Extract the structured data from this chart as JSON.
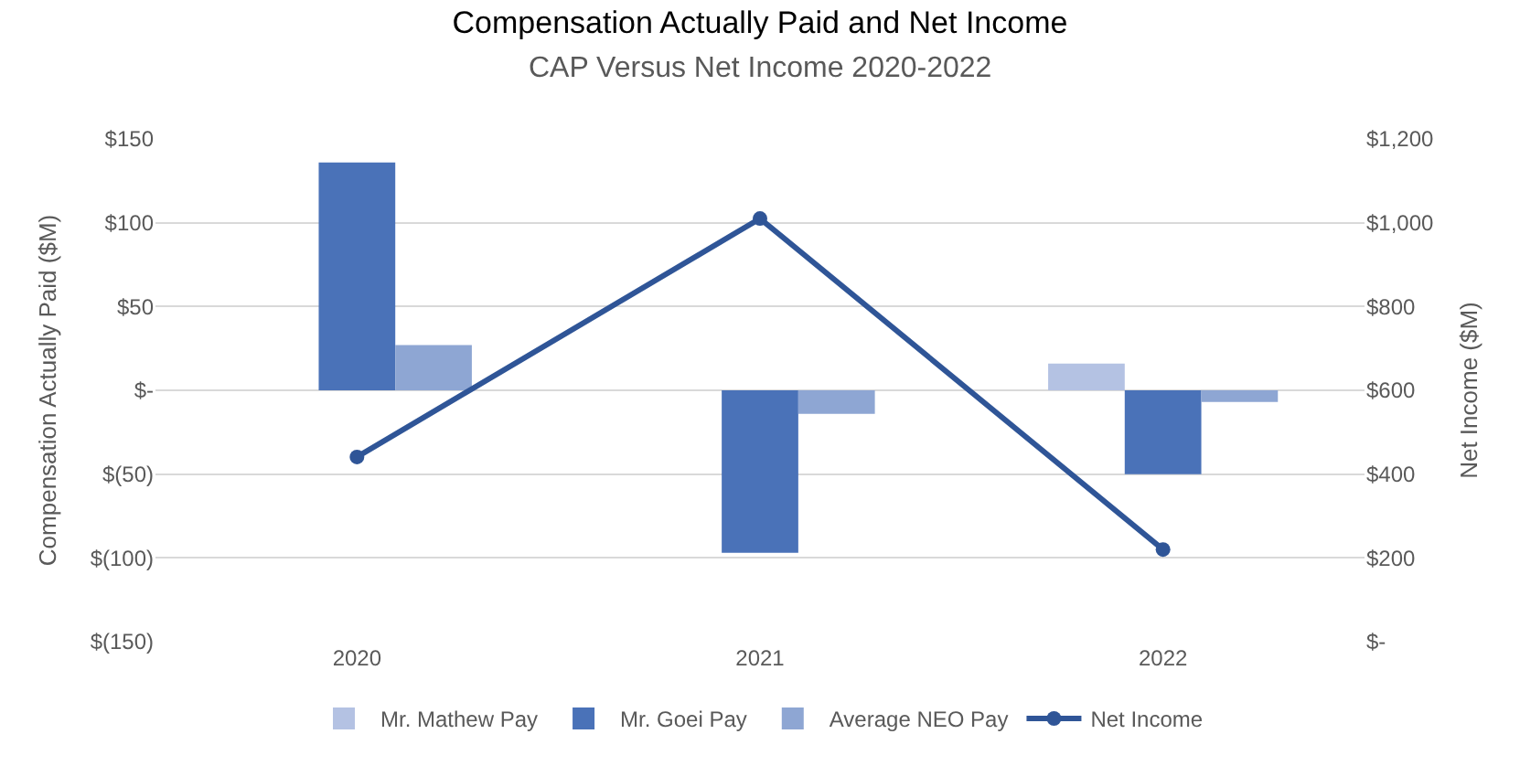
{
  "chart_data": {
    "type": "bar",
    "title": "Compensation Actually Paid and Net Income",
    "subtitle": "CAP Versus Net Income 2020-2022",
    "ylabel": "Compensation Actually Paid ($M)",
    "y2label": "Net Income ($M)",
    "categories": [
      "2020",
      "2021",
      "2022"
    ],
    "series": [
      {
        "name": "Mr. Mathew Pay",
        "color": "#b4c2e3",
        "values": [
          null,
          null,
          16
        ]
      },
      {
        "name": "Mr. Goei Pay",
        "color": "#4a72b8",
        "values": [
          136,
          -97,
          -50
        ]
      },
      {
        "name": "Average NEO Pay",
        "color": "#8ea6d3",
        "values": [
          27,
          -14,
          -7
        ]
      },
      {
        "name": "Net Income",
        "type": "line",
        "axis": "y2",
        "color": "#2f5597",
        "marker": "circle",
        "values": [
          441,
          1010,
          220
        ]
      }
    ],
    "ylim": [
      -150,
      150
    ],
    "yticks": [
      {
        "value": -150,
        "label": "$(150)"
      },
      {
        "value": -100,
        "label": "$(100)"
      },
      {
        "value": -50,
        "label": "$(50)"
      },
      {
        "value": 0,
        "label": "$-"
      },
      {
        "value": 50,
        "label": "$50"
      },
      {
        "value": 100,
        "label": "$100"
      },
      {
        "value": 150,
        "label": "$150"
      }
    ],
    "y2lim": [
      0,
      1200
    ],
    "y2ticks": [
      {
        "value": 0,
        "label": "$-"
      },
      {
        "value": 200,
        "label": "$200"
      },
      {
        "value": 400,
        "label": "$400"
      },
      {
        "value": 600,
        "label": "$600"
      },
      {
        "value": 800,
        "label": "$800"
      },
      {
        "value": 1000,
        "label": "$1,000"
      },
      {
        "value": 1200,
        "label": "$1,200"
      }
    ],
    "grid": "y",
    "legend": "bottom"
  }
}
